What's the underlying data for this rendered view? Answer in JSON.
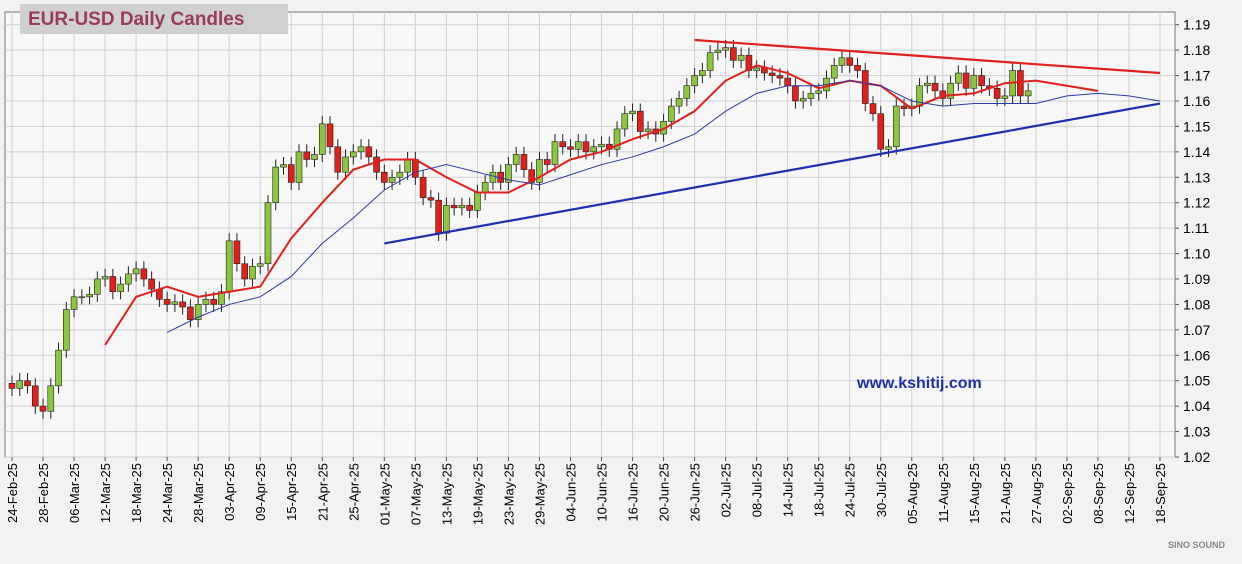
{
  "chart_data": {
    "type": "candlestick",
    "title": "EUR-USD Daily  Candles",
    "categories": [
      "24-Feb-25",
      null,
      null,
      null,
      "28-Feb-25",
      null,
      null,
      null,
      "06-Mar-25",
      null,
      null,
      null,
      "12-Mar-25",
      null,
      null,
      null,
      "18-Mar-25",
      null,
      null,
      null,
      "24-Mar-25",
      null,
      null,
      null,
      "28-Mar-25",
      null,
      null,
      null,
      "03-Apr-25",
      null,
      null,
      null,
      "09-Apr-25",
      null,
      null,
      null,
      "15-Apr-25",
      null,
      null,
      null,
      "21-Apr-25",
      null,
      null,
      null,
      "25-Apr-25",
      null,
      null,
      null,
      "01-May-25",
      null,
      null,
      null,
      "07-May-25",
      null,
      null,
      null,
      "13-May-25",
      null,
      null,
      null,
      "19-May-25",
      null,
      null,
      null,
      "23-May-25",
      null,
      null,
      null,
      "29-May-25",
      null,
      null,
      null,
      "04-Jun-25",
      null,
      null,
      null,
      "10-Jun-25",
      null,
      null,
      null,
      "16-Jun-25",
      null,
      null,
      null,
      "20-Jun-25",
      null,
      null,
      null,
      "26-Jun-25",
      null,
      null,
      null,
      "02-Jul-25",
      null,
      null,
      null,
      "08-Jul-25",
      null,
      null,
      null,
      "14-Jul-25",
      null,
      null,
      null,
      "18-Jul-25",
      null,
      null,
      null,
      "24-Jul-25",
      null,
      null,
      null,
      "30-Jul-25",
      null,
      null,
      null,
      "05-Aug-25",
      null,
      null,
      null,
      "11-Aug-25",
      null,
      null,
      null,
      "15-Aug-25",
      null,
      null,
      null,
      "21-Aug-25",
      null,
      null,
      null,
      "27-Aug-25",
      null,
      null,
      null,
      "02-Sep-25",
      null,
      null,
      null,
      "08-Sep-25",
      null,
      null,
      null,
      "12-Sep-25",
      null,
      null,
      null,
      "18-Sep-25",
      null
    ],
    "open": [
      1.049,
      1.047,
      1.05,
      1.048,
      1.04,
      1.038,
      1.048,
      1.062,
      1.078,
      1.083,
      1.083,
      1.084,
      1.09,
      1.091,
      1.085,
      1.088,
      1.092,
      1.094,
      1.09,
      1.086,
      1.082,
      1.08,
      1.081,
      1.079,
      1.074,
      1.08,
      1.082,
      1.08,
      1.085,
      1.105,
      1.096,
      1.09,
      1.095,
      1.096,
      1.12,
      1.134,
      1.135,
      1.128,
      1.14,
      1.137,
      1.139,
      1.151,
      1.142,
      1.132,
      1.138,
      1.14,
      1.142,
      1.138,
      1.132,
      1.128,
      1.13,
      1.132,
      1.137,
      1.13,
      1.122,
      1.121,
      1.108,
      1.119,
      1.118,
      1.119,
      1.117,
      1.124,
      1.128,
      1.132,
      1.128,
      1.135,
      1.139,
      1.133,
      1.128,
      1.137,
      1.135,
      1.144,
      1.142,
      1.141,
      1.144,
      1.14,
      1.142,
      1.143,
      1.141,
      1.149,
      1.155,
      1.156,
      1.148,
      1.149,
      1.147,
      1.152,
      1.158,
      1.161,
      1.166,
      1.17,
      1.172,
      1.179,
      1.18,
      1.181,
      1.176,
      1.178,
      1.172,
      1.173,
      1.171,
      1.17,
      1.169,
      1.166,
      1.16,
      1.161,
      1.163,
      1.164,
      1.169,
      1.174,
      1.177,
      1.174,
      1.172,
      1.159,
      1.155,
      1.141,
      1.142,
      1.158,
      1.157,
      1.158,
      1.166,
      1.167,
      1.164,
      1.161,
      1.167,
      1.171,
      1.165,
      1.17,
      1.166,
      1.165,
      1.161,
      1.162,
      1.172,
      1.162,
      null,
      null,
      null,
      null,
      null,
      null,
      null,
      null,
      null,
      null,
      null,
      null,
      null,
      null,
      null,
      null,
      null,
      null
    ],
    "high": [
      1.052,
      1.053,
      1.053,
      1.051,
      1.043,
      1.051,
      1.065,
      1.081,
      1.086,
      1.086,
      1.087,
      1.093,
      1.094,
      1.094,
      1.091,
      1.095,
      1.097,
      1.097,
      1.093,
      1.089,
      1.085,
      1.084,
      1.084,
      1.082,
      1.083,
      1.085,
      1.085,
      1.088,
      1.108,
      1.108,
      1.099,
      1.098,
      1.099,
      1.123,
      1.137,
      1.138,
      1.138,
      1.143,
      1.143,
      1.142,
      1.154,
      1.154,
      1.145,
      1.141,
      1.143,
      1.145,
      1.145,
      1.141,
      1.135,
      1.133,
      1.135,
      1.14,
      1.14,
      1.133,
      1.125,
      1.124,
      1.122,
      1.122,
      1.122,
      1.122,
      1.127,
      1.131,
      1.135,
      1.135,
      1.138,
      1.142,
      1.142,
      1.136,
      1.14,
      1.14,
      1.147,
      1.147,
      1.145,
      1.147,
      1.147,
      1.145,
      1.146,
      1.146,
      1.152,
      1.158,
      1.159,
      1.159,
      1.152,
      1.152,
      1.155,
      1.161,
      1.164,
      1.169,
      1.173,
      1.175,
      1.182,
      1.183,
      1.184,
      1.184,
      1.181,
      1.181,
      1.176,
      1.176,
      1.174,
      1.173,
      1.172,
      1.169,
      1.164,
      1.166,
      1.167,
      1.172,
      1.177,
      1.18,
      1.18,
      1.177,
      1.175,
      1.162,
      1.158,
      1.145,
      1.161,
      1.161,
      1.161,
      1.169,
      1.17,
      1.17,
      1.167,
      1.17,
      1.174,
      1.174,
      1.173,
      1.173,
      1.169,
      1.168,
      1.165,
      1.175,
      1.175,
      1.167,
      null,
      null,
      null,
      null,
      null,
      null,
      null,
      null,
      null,
      null,
      null,
      null,
      null,
      null,
      null,
      null,
      null,
      null
    ],
    "low": [
      1.044,
      1.044,
      1.045,
      1.037,
      1.035,
      1.035,
      1.045,
      1.059,
      1.075,
      1.08,
      1.08,
      1.081,
      1.087,
      1.082,
      1.082,
      1.085,
      1.089,
      1.087,
      1.083,
      1.079,
      1.077,
      1.077,
      1.076,
      1.071,
      1.071,
      1.077,
      1.077,
      1.077,
      1.082,
      1.093,
      1.087,
      1.087,
      1.092,
      1.093,
      1.117,
      1.131,
      1.125,
      1.125,
      1.134,
      1.134,
      1.136,
      1.139,
      1.129,
      1.129,
      1.135,
      1.137,
      1.135,
      1.129,
      1.125,
      1.125,
      1.127,
      1.129,
      1.127,
      1.119,
      1.118,
      1.105,
      1.105,
      1.115,
      1.115,
      1.114,
      1.114,
      1.121,
      1.125,
      1.125,
      1.125,
      1.132,
      1.13,
      1.125,
      1.125,
      1.132,
      1.132,
      1.139,
      1.138,
      1.138,
      1.137,
      1.137,
      1.139,
      1.138,
      1.138,
      1.146,
      1.152,
      1.145,
      1.145,
      1.144,
      1.144,
      1.149,
      1.155,
      1.158,
      1.163,
      1.167,
      1.169,
      1.176,
      1.177,
      1.173,
      1.173,
      1.169,
      1.169,
      1.168,
      1.167,
      1.166,
      1.163,
      1.157,
      1.157,
      1.158,
      1.16,
      1.161,
      1.166,
      1.171,
      1.171,
      1.169,
      1.156,
      1.152,
      1.138,
      1.138,
      1.139,
      1.154,
      1.154,
      1.155,
      1.163,
      1.161,
      1.158,
      1.158,
      1.164,
      1.162,
      1.162,
      1.163,
      1.162,
      1.158,
      1.158,
      1.159,
      1.159,
      1.159,
      null,
      null,
      null,
      null,
      null,
      null,
      null,
      null,
      null,
      null,
      null,
      null,
      null,
      null,
      null,
      null,
      null,
      null
    ],
    "close": [
      1.047,
      1.05,
      1.048,
      1.04,
      1.038,
      1.048,
      1.062,
      1.078,
      1.083,
      1.083,
      1.084,
      1.09,
      1.091,
      1.085,
      1.088,
      1.092,
      1.094,
      1.09,
      1.086,
      1.082,
      1.08,
      1.081,
      1.079,
      1.074,
      1.08,
      1.082,
      1.08,
      1.085,
      1.105,
      1.096,
      1.09,
      1.095,
      1.096,
      1.12,
      1.134,
      1.135,
      1.128,
      1.14,
      1.137,
      1.139,
      1.151,
      1.142,
      1.132,
      1.138,
      1.14,
      1.142,
      1.138,
      1.132,
      1.128,
      1.13,
      1.132,
      1.137,
      1.13,
      1.122,
      1.121,
      1.108,
      1.119,
      1.118,
      1.119,
      1.117,
      1.124,
      1.128,
      1.132,
      1.128,
      1.135,
      1.139,
      1.133,
      1.128,
      1.137,
      1.135,
      1.144,
      1.142,
      1.141,
      1.144,
      1.14,
      1.142,
      1.143,
      1.141,
      1.149,
      1.155,
      1.156,
      1.148,
      1.149,
      1.147,
      1.152,
      1.158,
      1.161,
      1.166,
      1.17,
      1.172,
      1.179,
      1.18,
      1.181,
      1.176,
      1.178,
      1.172,
      1.173,
      1.171,
      1.17,
      1.169,
      1.166,
      1.16,
      1.161,
      1.163,
      1.164,
      1.169,
      1.174,
      1.177,
      1.174,
      1.172,
      1.159,
      1.155,
      1.141,
      1.142,
      1.158,
      1.157,
      1.158,
      1.166,
      1.167,
      1.164,
      1.161,
      1.167,
      1.171,
      1.165,
      1.17,
      1.166,
      1.165,
      1.161,
      1.162,
      1.172,
      1.162,
      1.164,
      null,
      null,
      null,
      null,
      null,
      null,
      null,
      null,
      null,
      null,
      null,
      null,
      null,
      null,
      null,
      null,
      null,
      null
    ],
    "up_color": "#8cc63e",
    "down_color": "#e0201b",
    "series": [
      {
        "color": "#e0201b",
        "x": [
          "12-Mar-25",
          "18-Mar-25",
          "24-Mar-25",
          "28-Mar-25",
          "03-Apr-25",
          "09-Apr-25",
          "15-Apr-25",
          "21-Apr-25",
          "25-Apr-25",
          "01-May-25",
          "07-May-25",
          "13-May-25",
          "19-May-25",
          "23-May-25",
          "29-May-25",
          "04-Jun-25",
          "10-Jun-25",
          "16-Jun-25",
          "20-Jun-25",
          "26-Jun-25",
          "02-Jul-25",
          "08-Jul-25",
          "14-Jul-25",
          "18-Jul-25",
          "24-Jul-25",
          "30-Jul-25",
          "05-Aug-25",
          "11-Aug-25",
          "15-Aug-25",
          "21-Aug-25",
          "27-Aug-25",
          "02-Sep-25",
          "08-Sep-25"
        ],
        "values": [
          1.064,
          1.083,
          1.087,
          1.083,
          1.085,
          1.087,
          1.106,
          1.12,
          1.133,
          1.137,
          1.137,
          1.13,
          1.124,
          1.124,
          1.13,
          1.137,
          1.14,
          1.145,
          1.149,
          1.156,
          1.168,
          1.174,
          1.171,
          1.165,
          1.168,
          1.166,
          1.157,
          1.162,
          1.163,
          1.167,
          1.168,
          1.166,
          1.164
        ]
      },
      {
        "color": "#2b3aa8",
        "x": [
          "24-Mar-25",
          "28-Mar-25",
          "03-Apr-25",
          "09-Apr-25",
          "15-Apr-25",
          "21-Apr-25",
          "25-Apr-25",
          "01-May-25",
          "07-May-25",
          "13-May-25",
          "19-May-25",
          "23-May-25",
          "29-May-25",
          "04-Jun-25",
          "10-Jun-25",
          "16-Jun-25",
          "20-Jun-25",
          "26-Jun-25",
          "02-Jul-25",
          "08-Jul-25",
          "14-Jul-25",
          "18-Jul-25",
          "24-Jul-25",
          "30-Jul-25",
          "05-Aug-25",
          "11-Aug-25",
          "15-Aug-25",
          "21-Aug-25",
          "27-Aug-25",
          "02-Sep-25",
          "08-Sep-25",
          "12-Sep-25",
          "18-Sep-25"
        ],
        "values": [
          1.069,
          1.075,
          1.08,
          1.083,
          1.091,
          1.104,
          1.114,
          1.125,
          1.132,
          1.135,
          1.132,
          1.129,
          1.127,
          1.131,
          1.135,
          1.138,
          1.142,
          1.147,
          1.156,
          1.163,
          1.166,
          1.166,
          1.168,
          1.166,
          1.16,
          1.158,
          1.159,
          1.159,
          1.159,
          1.162,
          1.163,
          1.162,
          1.16
        ]
      }
    ],
    "trendlines": [
      {
        "color": "#e0201b",
        "x": [
          "26-Jun-25",
          "18-Sep-25"
        ],
        "values": [
          1.184,
          1.171
        ]
      },
      {
        "color": "#1f2db0",
        "x": [
          "01-May-25",
          "18-Sep-25"
        ],
        "values": [
          1.104,
          1.159
        ]
      }
    ],
    "ylim": [
      1.02,
      1.195
    ],
    "yticks": [
      1.02,
      1.03,
      1.04,
      1.05,
      1.06,
      1.07,
      1.08,
      1.09,
      {
        "value": 1.1,
        "label": "1.10"
      },
      1.11,
      1.12,
      1.13,
      1.14,
      1.15,
      1.16,
      1.17,
      1.18,
      1.19
    ],
    "grid": true,
    "watermark": "www.kshitij.com",
    "logo": "SINO SOUND"
  }
}
